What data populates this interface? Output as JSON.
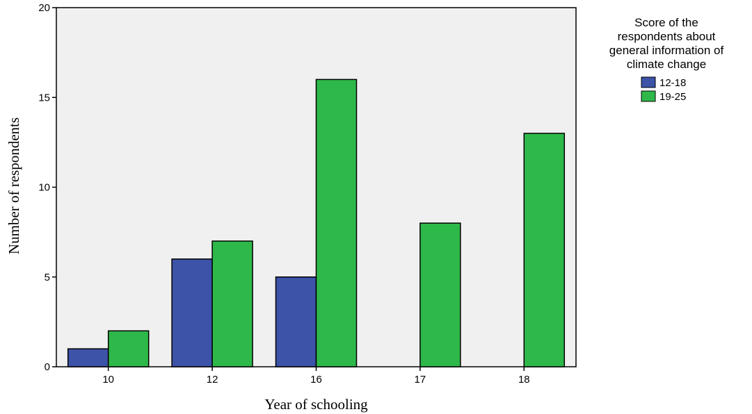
{
  "chart_data": {
    "type": "bar",
    "title": "",
    "xlabel": "Year of schooling",
    "ylabel": "Number of respondents",
    "categories": [
      "10",
      "12",
      "16",
      "17",
      "18"
    ],
    "series": [
      {
        "name": "12-18",
        "values": [
          1,
          6,
          5,
          null,
          null
        ],
        "color": "#3c53a8"
      },
      {
        "name": "19-25",
        "values": [
          2,
          7,
          16,
          8,
          13
        ],
        "color": "#2fb84a"
      }
    ],
    "ylim": [
      0,
      20
    ],
    "yticks": [
      0,
      5,
      10,
      15,
      20
    ],
    "grid": false,
    "plot_background": "#f0f0f0",
    "legend": {
      "title_lines": [
        "Score of the",
        "respondents about",
        "general information of",
        "climate change"
      ],
      "placement": "right"
    }
  }
}
